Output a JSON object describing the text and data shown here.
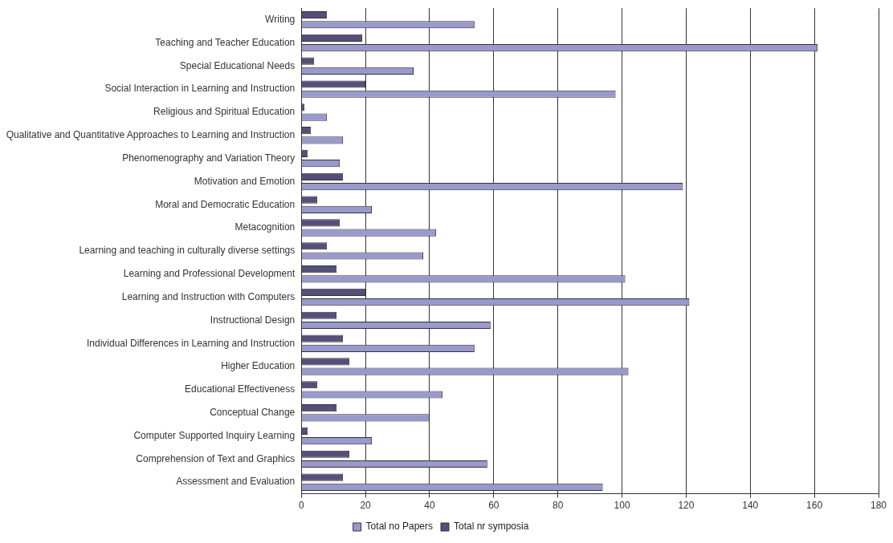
{
  "chart_data": {
    "type": "bar",
    "orientation": "horizontal",
    "categories": [
      "Writing",
      "Teaching and Teacher Education",
      "Special Educational Needs",
      "Social Interaction in Learning and Instruction",
      "Religious and Spiritual Education",
      "Qualitative and Quantitative Approaches to Learning and Instruction",
      "Phenomenography and Variation Theory",
      "Motivation and Emotion",
      "Moral and Democratic Education",
      "Metacognition",
      "Learning and teaching in culturally diverse settings",
      "Learning and Professional Development",
      "Learning and Instruction with Computers",
      "Instructional Design",
      "Individual Differences in Learning and Instruction",
      "Higher Education",
      "Educational Effectiveness",
      "Conceptual Change",
      "Computer Supported Inquiry Learning",
      "Comprehension of Text and Graphics",
      "Assessment and Evaluation"
    ],
    "series": [
      {
        "name": "Total no Papers",
        "color": "#9999cc",
        "values": [
          54,
          161,
          35,
          98,
          8,
          13,
          12,
          119,
          22,
          42,
          38,
          101,
          121,
          59,
          54,
          102,
          44,
          40,
          22,
          58,
          94
        ]
      },
      {
        "name": "Total nr symposia",
        "color": "#554f7a",
        "values": [
          8,
          19,
          4,
          20,
          1,
          3,
          2,
          13,
          5,
          12,
          8,
          11,
          20,
          11,
          13,
          15,
          5,
          11,
          2,
          15,
          13
        ]
      }
    ],
    "xlim": [
      0,
      180
    ],
    "xticks": [
      0,
      20,
      40,
      60,
      80,
      100,
      120,
      140,
      160,
      180
    ],
    "grid": "x",
    "legend": "bottom"
  }
}
